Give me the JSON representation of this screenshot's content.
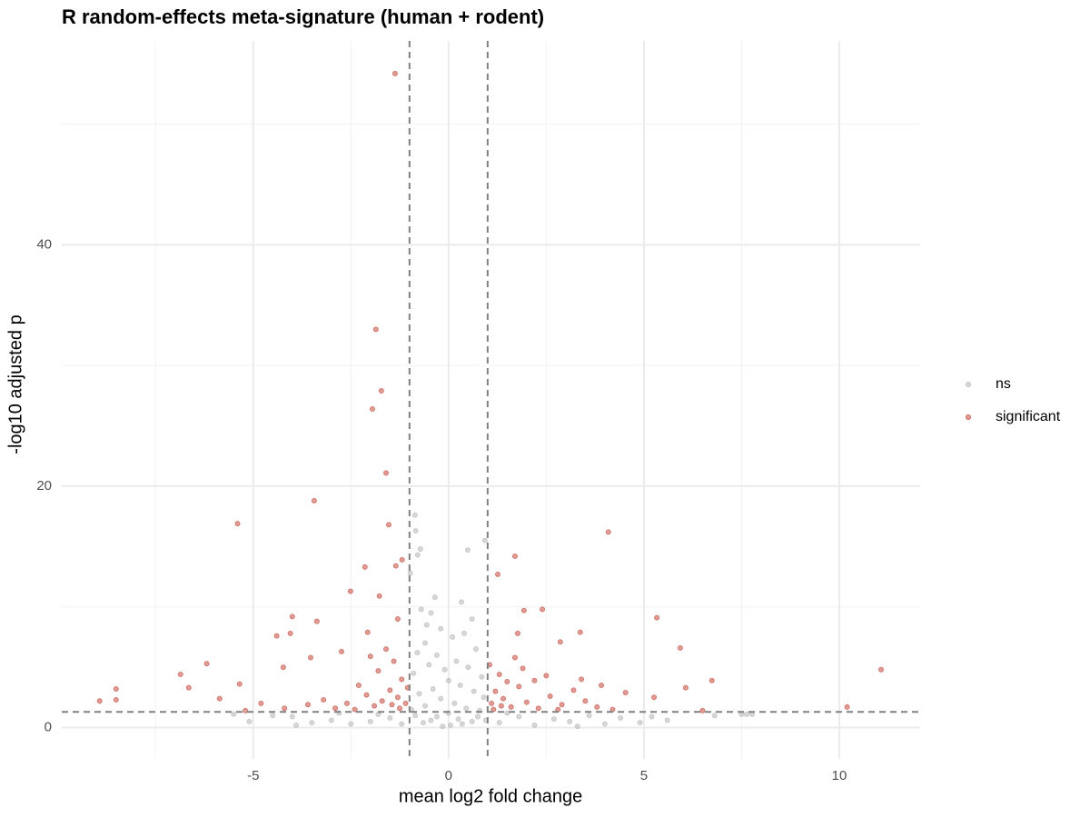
{
  "chart_data": {
    "type": "scatter",
    "title": "R random-effects meta-signature (human + rodent)",
    "x_label": "mean log2 fold change",
    "y_label": "-log10 adjusted p",
    "xlim": [
      -9.9,
      12.07
    ],
    "ylim": [
      -2.6,
      56.9
    ],
    "xticks": [
      -5,
      0,
      5,
      10
    ],
    "yticks": [
      0,
      20,
      40
    ],
    "x_minor_grid": [
      -7.5,
      -2.5,
      2.5,
      7.5
    ],
    "y_minor_grid": [
      10,
      30,
      50
    ],
    "grid": true,
    "legend": "right",
    "vlines": [
      -1,
      1
    ],
    "hline": 1.3,
    "series": [
      {
        "name": "ns",
        "color": "#b0b0b0",
        "x": [
          -0.86,
          -0.84,
          -0.72,
          -0.79,
          0.93,
          0.49,
          -0.98,
          -0.35,
          0.33,
          -0.7,
          -0.56,
          0.6,
          -0.45,
          -0.2,
          0.1,
          -0.6,
          0.4,
          0.7,
          -0.8,
          -0.3,
          0.2,
          0.5,
          -0.5,
          -0.9,
          0.85,
          -0.1,
          0.0,
          0.3,
          -0.4,
          0.65,
          -0.75,
          0.9,
          -0.2,
          0.15,
          -0.6,
          0.45,
          -0.95,
          0.8,
          0.0,
          -0.3,
          0.25,
          0.6,
          -0.65,
          0.05,
          -0.15,
          0.35,
          -0.45,
          0.75,
          -0.85,
          0.95,
          -1.5,
          -2.0,
          -2.5,
          -3.0,
          -3.5,
          -4.0,
          -4.5,
          -5.1,
          -5.5,
          -1.2,
          -1.8,
          1.3,
          1.8,
          2.2,
          2.7,
          3.1,
          3.6,
          4.0,
          4.4,
          4.9,
          5.2,
          5.6,
          6.81,
          7.5,
          7.63,
          7.77,
          1.5,
          -2.8,
          3.3,
          -3.9
        ],
        "values": [
          17.6,
          16.3,
          14.8,
          14.3,
          15.5,
          14.7,
          12.8,
          10.8,
          10.4,
          9.8,
          8.5,
          9.0,
          9.5,
          8.2,
          7.5,
          7.0,
          7.8,
          6.5,
          6.2,
          6.0,
          5.5,
          5.0,
          5.2,
          4.5,
          4.2,
          4.8,
          3.9,
          3.5,
          3.2,
          3.0,
          2.8,
          2.5,
          2.4,
          2.0,
          1.8,
          1.6,
          1.5,
          1.4,
          1.2,
          0.9,
          0.7,
          0.5,
          0.4,
          0.2,
          0.1,
          0.3,
          0.6,
          0.9,
          1.0,
          0.6,
          0.8,
          0.5,
          0.3,
          0.6,
          0.4,
          0.9,
          1.0,
          0.5,
          1.1,
          0.3,
          1.1,
          0.4,
          0.9,
          0.2,
          0.7,
          0.5,
          1.0,
          0.3,
          0.8,
          0.4,
          0.9,
          0.6,
          1.0,
          1.1,
          1.1,
          1.1,
          1.2,
          1.2,
          0.1,
          0.2
        ]
      },
      {
        "name": "significant",
        "color": "#c0392b",
        "x": [
          -1.37,
          -1.86,
          -1.72,
          -1.95,
          -1.6,
          -3.44,
          -5.4,
          4.09,
          -1.53,
          1.7,
          1.26,
          -2.14,
          -1.35,
          -1.19,
          -2.51,
          -1.77,
          1.93,
          2.4,
          5.33,
          -4.0,
          -3.37,
          -1.3,
          1.77,
          3.37,
          -4.4,
          -4.05,
          -2.07,
          5.93,
          2.86,
          -3.53,
          -2.74,
          -6.19,
          -4.23,
          11.07,
          -6.86,
          6.07,
          6.74,
          3.4,
          3.91,
          -8.51,
          -6.65,
          -5.35,
          4.53,
          5.26,
          -8.93,
          -8.51,
          -5.86,
          10.2,
          6.5,
          -1.1,
          -1.3,
          -1.5,
          -1.7,
          -1.9,
          -2.1,
          -2.3,
          -2.6,
          -2.9,
          -3.2,
          -1.2,
          -1.4,
          -1.6,
          -1.8,
          -2.0,
          -1.05,
          -1.25,
          -1.45,
          -2.4,
          -3.6,
          -4.2,
          -4.8,
          -5.2,
          1.1,
          1.2,
          1.4,
          1.6,
          1.8,
          2.0,
          2.3,
          2.6,
          2.9,
          3.2,
          1.05,
          1.3,
          1.5,
          1.7,
          1.9,
          2.2,
          2.5,
          1.15,
          1.35,
          2.8,
          3.5,
          3.8,
          4.2
        ],
        "values": [
          54.2,
          33.0,
          27.9,
          26.4,
          21.1,
          18.8,
          16.9,
          16.2,
          16.8,
          14.2,
          12.7,
          13.3,
          13.4,
          13.9,
          11.3,
          10.9,
          9.7,
          9.8,
          9.1,
          9.2,
          8.8,
          9.0,
          7.8,
          7.9,
          7.6,
          7.8,
          7.9,
          6.6,
          7.1,
          5.8,
          6.3,
          5.3,
          5.0,
          4.8,
          4.4,
          3.3,
          3.9,
          4.0,
          3.5,
          3.2,
          3.3,
          3.6,
          2.9,
          2.5,
          2.2,
          2.3,
          2.4,
          1.7,
          1.4,
          2.0,
          2.5,
          3.1,
          2.2,
          1.8,
          2.7,
          3.5,
          2.0,
          1.6,
          2.3,
          4.0,
          5.5,
          6.5,
          4.7,
          5.9,
          3.3,
          1.6,
          1.9,
          1.5,
          1.9,
          1.6,
          2.0,
          1.4,
          2.0,
          3.0,
          2.4,
          1.7,
          3.4,
          2.1,
          1.6,
          2.6,
          1.9,
          3.1,
          5.2,
          4.4,
          3.8,
          5.8,
          4.9,
          3.9,
          4.3,
          1.5,
          1.8,
          1.5,
          2.2,
          1.7,
          1.5
        ]
      }
    ]
  }
}
